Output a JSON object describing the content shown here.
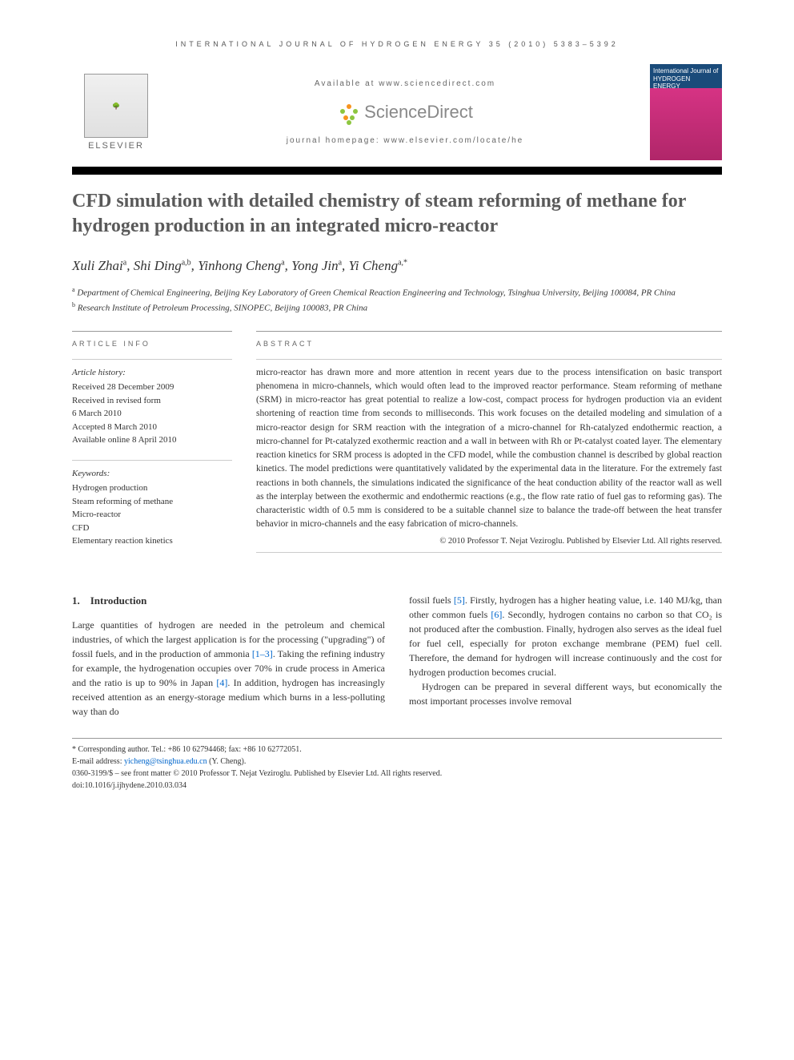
{
  "header": {
    "journal_ref": "INTERNATIONAL JOURNAL OF HYDROGEN ENERGY 35 (2010) 5383–5392",
    "available_at": "Available at www.sciencedirect.com",
    "sciencedirect": "ScienceDirect",
    "homepage": "journal homepage: www.elsevier.com/locate/he",
    "elsevier": "ELSEVIER",
    "cover_title": "International Journal of HYDROGEN ENERGY"
  },
  "title": "CFD simulation with detailed chemistry of steam reforming of methane for hydrogen production in an integrated micro-reactor",
  "authors_html": "Xuli Zhai<sup>a</sup>, Shi Ding<sup>a,b</sup>, Yinhong Cheng<sup>a</sup>, Yong Jin<sup>a</sup>, Yi Cheng<sup>a,*</sup>",
  "affiliations": {
    "a": "Department of Chemical Engineering, Beijing Key Laboratory of Green Chemical Reaction Engineering and Technology, Tsinghua University, Beijing 100084, PR China",
    "b": "Research Institute of Petroleum Processing, SINOPEC, Beijing 100083, PR China"
  },
  "article_info": {
    "heading": "ARTICLE INFO",
    "history_title": "Article history:",
    "history": [
      "Received 28 December 2009",
      "Received in revised form",
      "6 March 2010",
      "Accepted 8 March 2010",
      "Available online 8 April 2010"
    ],
    "keywords_title": "Keywords:",
    "keywords": [
      "Hydrogen production",
      "Steam reforming of methane",
      "Micro-reactor",
      "CFD",
      "Elementary reaction kinetics"
    ]
  },
  "abstract": {
    "heading": "ABSTRACT",
    "text": "micro-reactor has drawn more and more attention in recent years due to the process intensification on basic transport phenomena in micro-channels, which would often lead to the improved reactor performance. Steam reforming of methane (SRM) in micro-reactor has great potential to realize a low-cost, compact process for hydrogen production via an evident shortening of reaction time from seconds to milliseconds. This work focuses on the detailed modeling and simulation of a micro-reactor design for SRM reaction with the integration of a micro-channel for Rh-catalyzed endothermic reaction, a micro-channel for Pt-catalyzed exothermic reaction and a wall in between with Rh or Pt-catalyst coated layer. The elementary reaction kinetics for SRM process is adopted in the CFD model, while the combustion channel is described by global reaction kinetics. The model predictions were quantitatively validated by the experimental data in the literature. For the extremely fast reactions in both channels, the simulations indicated the significance of the heat conduction ability of the reactor wall as well as the interplay between the exothermic and endothermic reactions (e.g., the flow rate ratio of fuel gas to reforming gas). The characteristic width of 0.5 mm is considered to be a suitable channel size to balance the trade-off between the heat transfer behavior in micro-channels and the easy fabrication of micro-channels.",
    "copyright": "© 2010 Professor T. Nejat Veziroglu. Published by Elsevier Ltd. All rights reserved."
  },
  "body": {
    "section_number": "1.",
    "section_title": "Introduction",
    "col1": "Large quantities of hydrogen are needed in the petroleum and chemical industries, of which the largest application is for the processing (\"upgrading\") of fossil fuels, and in the production of ammonia [1–3]. Taking the refining industry for example, the hydrogenation occupies over 70% in crude process in America and the ratio is up to 90% in Japan [4]. In addition, hydrogen has increasingly received attention as an energy-storage medium which burns in a less-polluting way than do",
    "col2_p1": "fossil fuels [5]. Firstly, hydrogen has a higher heating value, i.e. 140 MJ/kg, than other common fuels [6]. Secondly, hydrogen contains no carbon so that CO₂ is not produced after the combustion. Finally, hydrogen also serves as the ideal fuel for fuel cell, especially for proton exchange membrane (PEM) fuel cell. Therefore, the demand for hydrogen will increase continuously and the cost for hydrogen production becomes crucial.",
    "col2_p2": "Hydrogen can be prepared in several different ways, but economically the most important processes involve removal"
  },
  "footnote": {
    "corresponding": "* Corresponding author. Tel.: +86 10 62794468; fax: +86 10 62772051.",
    "email_label": "E-mail address:",
    "email": "yicheng@tsinghua.edu.cn",
    "email_suffix": "(Y. Cheng).",
    "front_matter": "0360-3199/$ – see front matter © 2010 Professor T. Nejat Veziroglu. Published by Elsevier Ltd. All rights reserved.",
    "doi": "doi:10.1016/j.ijhydene.2010.03.034"
  },
  "refs": {
    "r1_3": "[1–3]",
    "r4": "[4]",
    "r5": "[5]",
    "r6": "[6]"
  }
}
